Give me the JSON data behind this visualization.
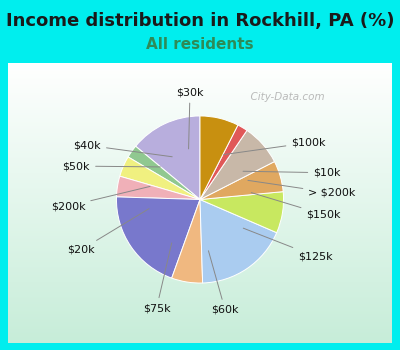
{
  "title": "Income distribution in Rockhill, PA (%)",
  "subtitle": "All residents",
  "title_fontsize": 13,
  "subtitle_fontsize": 11,
  "title_color": "#1a1a1a",
  "subtitle_color": "#2e8B57",
  "background_color": "#00EEEE",
  "chart_bg_top": "#FFFFFF",
  "chart_bg_bottom": "#C8EED8",
  "watermark": "City-Data.com",
  "labels": [
    "$100k",
    "$10k",
    "> $200k",
    "$150k",
    "$125k",
    "$60k",
    "$75k",
    "$20k",
    "$200k",
    "$50k",
    "$40k",
    "$30k"
  ],
  "sizes": [
    14,
    2.5,
    4,
    4,
    20,
    6,
    18,
    8,
    6,
    8,
    2,
    7.5
  ],
  "colors": [
    "#B8AEDD",
    "#90C890",
    "#F0F080",
    "#F0B0B8",
    "#7878CC",
    "#F0B880",
    "#AACCF0",
    "#C8E860",
    "#E0A860",
    "#C8B8A8",
    "#E05858",
    "#C89010"
  ],
  "startangle": 90,
  "label_fontsize": 8
}
